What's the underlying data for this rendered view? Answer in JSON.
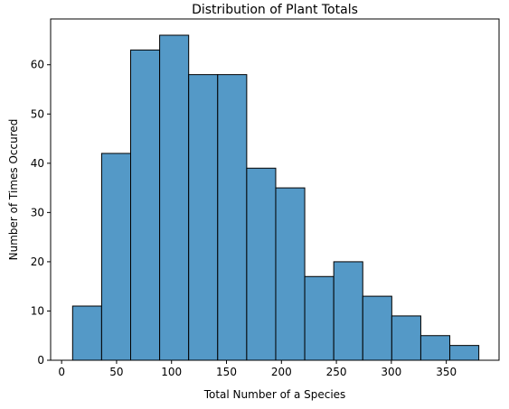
{
  "chart_data": {
    "type": "bar",
    "title": "Distribution of Plant Totals",
    "xlabel": "Total Number of a Species",
    "ylabel": "Number of Times Occured",
    "bin_edges": [
      10,
      36.4,
      62.8,
      89.2,
      115.6,
      142,
      168.4,
      194.8,
      221.2,
      247.6,
      274,
      300.4,
      326.8,
      353.2,
      379.6
    ],
    "values": [
      11,
      42,
      63,
      66,
      58,
      58,
      39,
      35,
      17,
      20,
      13,
      9,
      5,
      3
    ],
    "xlim": [
      -10,
      398
    ],
    "ylim": [
      0,
      69.3
    ],
    "xticks": [
      0,
      50,
      100,
      150,
      200,
      250,
      300,
      350
    ],
    "yticks": [
      0,
      10,
      20,
      30,
      40,
      50,
      60
    ],
    "bar_color": "#5499c7",
    "edge_color": "#000000",
    "grid": false
  }
}
